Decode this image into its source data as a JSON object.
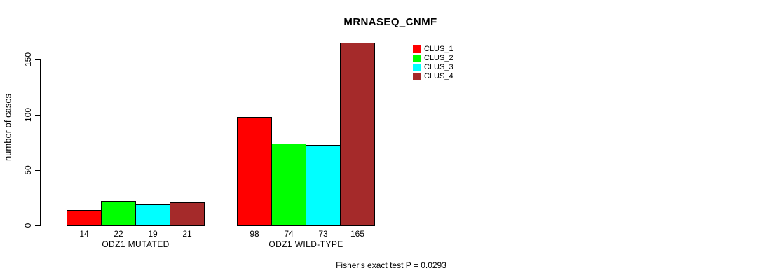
{
  "chart_data": {
    "type": "bar",
    "title": "MRNASEQ_CNMF",
    "ylabel": "number of cases",
    "xlabel": "",
    "categories": [
      "ODZ1 MUTATED",
      "ODZ1 WILD-TYPE"
    ],
    "series": [
      {
        "name": "CLUS_1",
        "color": "#FF0000",
        "values": [
          14,
          98
        ]
      },
      {
        "name": "CLUS_2",
        "color": "#00FF00",
        "values": [
          22,
          74
        ]
      },
      {
        "name": "CLUS_3",
        "color": "#00FFFF",
        "values": [
          19,
          73
        ]
      },
      {
        "name": "CLUS_4",
        "color": "#A52A2A",
        "values": [
          21,
          165
        ]
      }
    ],
    "yticks": [
      0,
      50,
      100,
      150
    ],
    "ylim": [
      0,
      165
    ],
    "bar_value_labels_shown": true,
    "legend": {
      "position": "top-right",
      "entries": [
        "CLUS_1",
        "CLUS_2",
        "CLUS_3",
        "CLUS_4"
      ]
    },
    "grid": false,
    "annotation": "Fisher's exact test P = 0.0293",
    "background": "#FFFFFF",
    "bar_border_color": "#000000"
  }
}
